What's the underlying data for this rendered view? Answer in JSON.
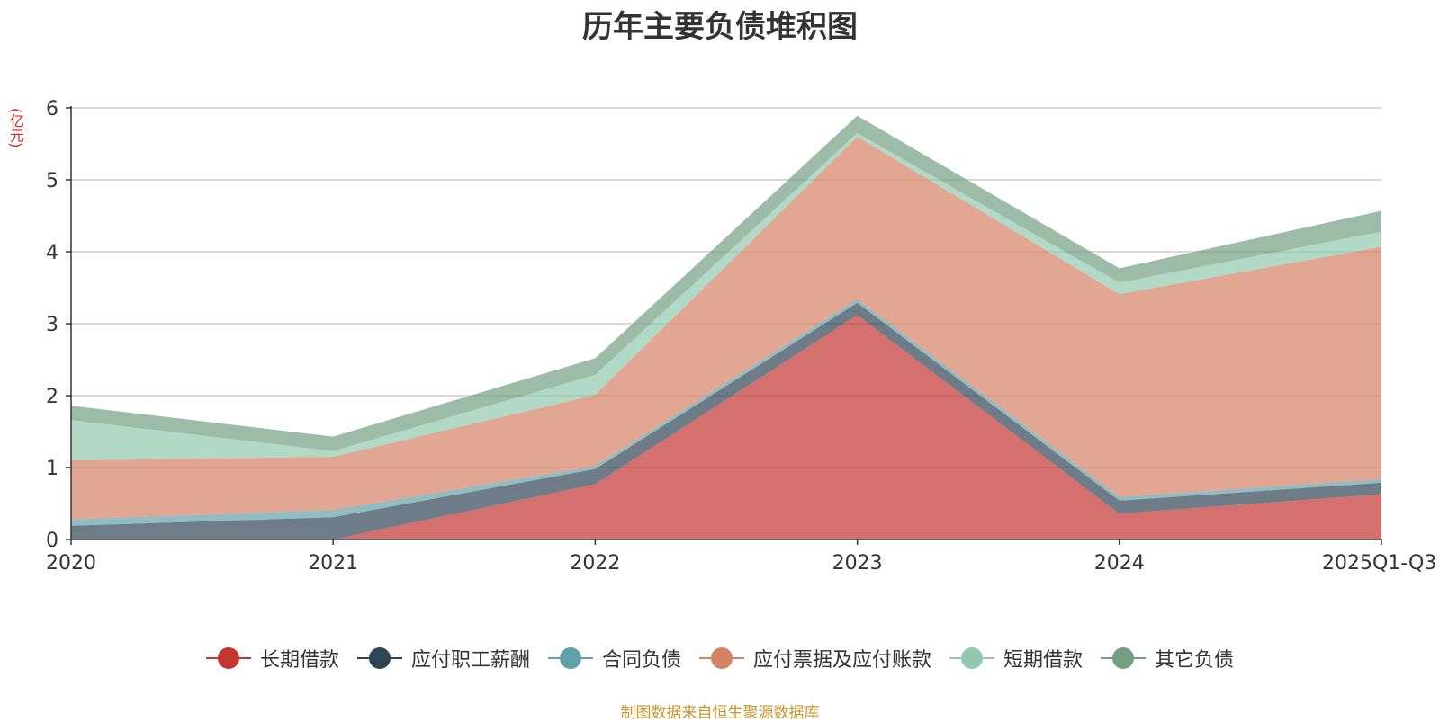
{
  "unit_label": "(亿元)",
  "source_note": "制图数据来自恒生聚源数据库",
  "chart_data": {
    "type": "area",
    "stacked": true,
    "title": "历年主要负债堆积图",
    "xlabel": "",
    "ylabel": "(亿元)",
    "categories": [
      "2020",
      "2021",
      "2022",
      "2023",
      "2024",
      "2025Q1-Q3"
    ],
    "ylim": [
      0,
      6
    ],
    "yticks": [
      0,
      1,
      2,
      3,
      4,
      5,
      6
    ],
    "grid": true,
    "legend_position": "bottom",
    "series": [
      {
        "name": "长期借款",
        "color": "#c23531",
        "values": [
          0.0,
          0.0,
          0.77,
          3.12,
          0.36,
          0.63
        ]
      },
      {
        "name": "应付职工薪酬",
        "color": "#2f4554",
        "values": [
          0.19,
          0.31,
          0.21,
          0.17,
          0.18,
          0.16
        ]
      },
      {
        "name": "合同负债",
        "color": "#61a0a8",
        "values": [
          0.09,
          0.1,
          0.04,
          0.05,
          0.05,
          0.05
        ]
      },
      {
        "name": "应付票据及应付账款",
        "color": "#d48265",
        "values": [
          0.82,
          0.74,
          0.99,
          2.26,
          2.82,
          3.23
        ]
      },
      {
        "name": "短期借款",
        "color": "#91c7ae",
        "values": [
          0.56,
          0.08,
          0.28,
          0.05,
          0.16,
          0.21
        ]
      },
      {
        "name": "其它负债",
        "color": "#749f83",
        "values": [
          0.2,
          0.2,
          0.23,
          0.24,
          0.2,
          0.29
        ]
      }
    ]
  }
}
